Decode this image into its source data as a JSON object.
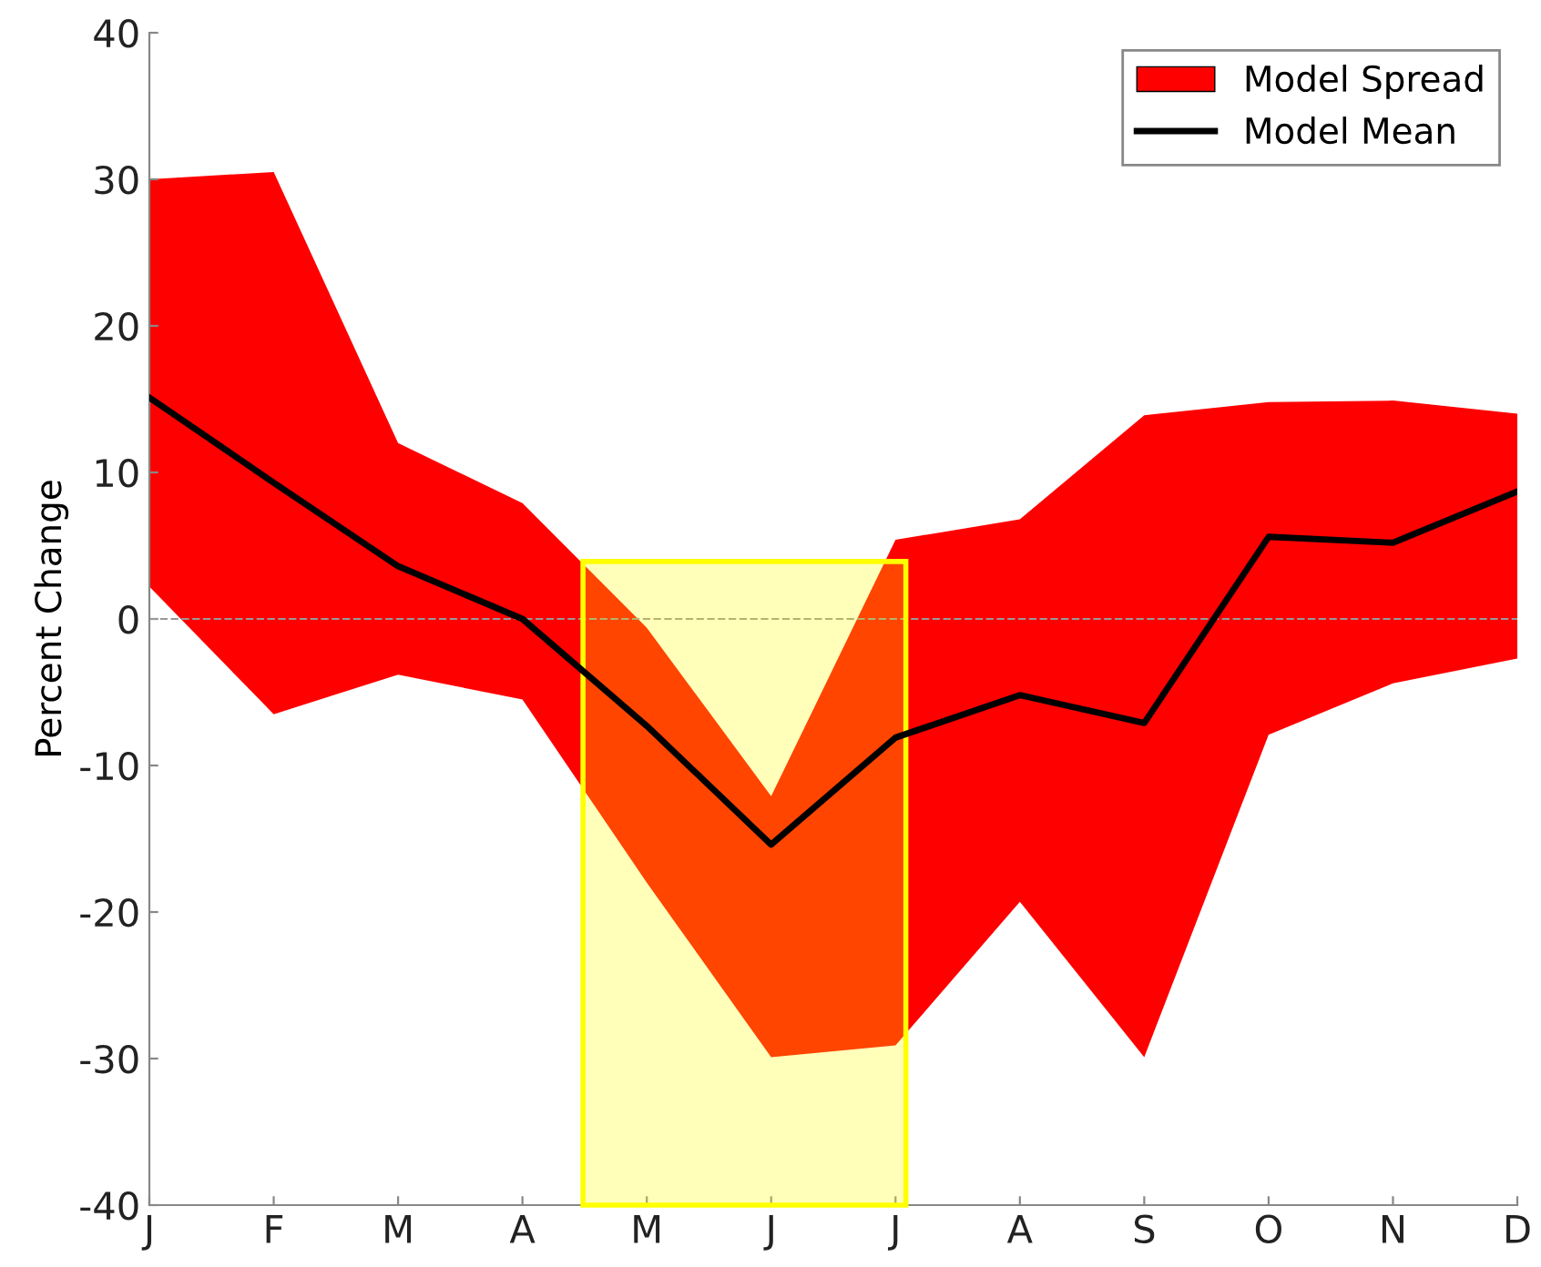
{
  "chart_data": {
    "type": "line",
    "ylabel": "Percent Change",
    "categories": [
      "J",
      "F",
      "M",
      "A",
      "M",
      "J",
      "J",
      "A",
      "S",
      "O",
      "N",
      "D"
    ],
    "ylim": [
      -40,
      40
    ],
    "yticks": [
      -40,
      -30,
      -20,
      -10,
      0,
      10,
      20,
      30,
      40
    ],
    "series": [
      {
        "name": "Model Spread",
        "type": "area",
        "color": "#ff0000",
        "values": [
          null,
          null,
          null,
          null,
          null,
          null,
          null,
          null,
          null,
          null,
          null,
          null
        ],
        "lower": [
          2.2,
          -6.5,
          -3.8,
          -5.5,
          -18,
          -29.9,
          -29.1,
          -19.3,
          -29.9,
          -7.9,
          -4.4,
          -2.7
        ],
        "upper": [
          30,
          30.5,
          12,
          7.9,
          -0.6,
          -12.1,
          5.4,
          6.8,
          13.9,
          14.8,
          14.9,
          14
        ]
      },
      {
        "name": "Model Mean",
        "color": "#000000",
        "values": [
          15.1,
          9.3,
          3.6,
          0,
          -7.3,
          -15.4,
          -8.1,
          -5.2,
          -7.1,
          5.6,
          5.2,
          8.7
        ]
      }
    ],
    "ref_lines": [
      {
        "axis": "y",
        "value": 0,
        "color": "#999999",
        "line_style": "dashed"
      }
    ],
    "legend": "top right",
    "grid": false
  }
}
